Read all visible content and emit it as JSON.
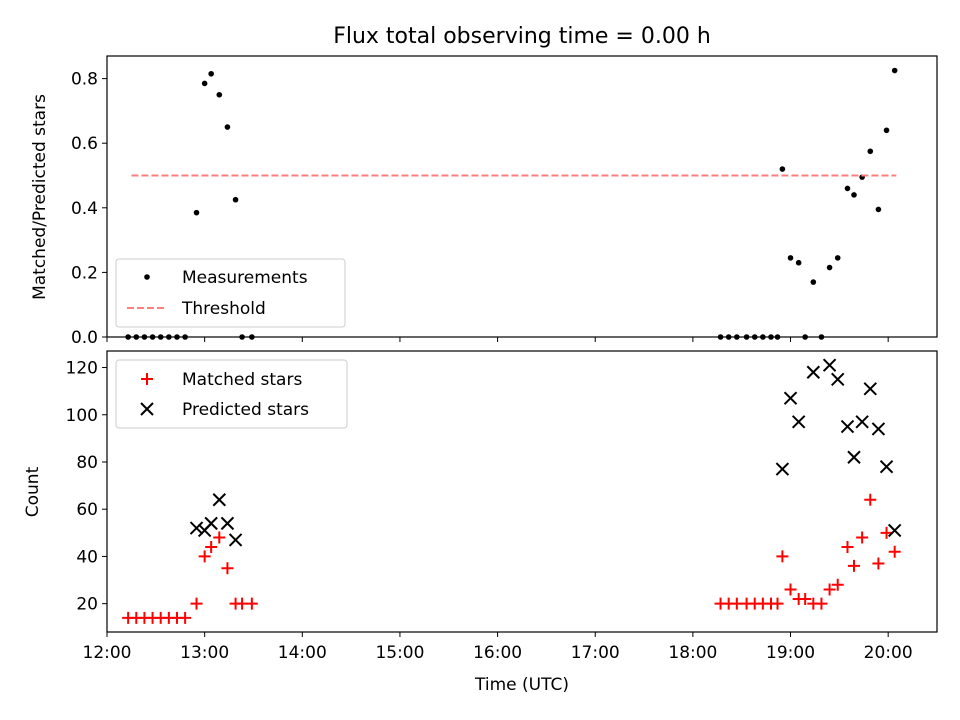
{
  "chart_data": [
    {
      "type": "scatter",
      "title": "Flux total observing time = 0.00 h",
      "xlabel": "",
      "ylabel": "Matched/Predicted stars",
      "xlim": [
        "12:00",
        "20:30"
      ],
      "ylim": [
        0,
        0.87
      ],
      "yticks": [
        "0.0",
        "0.2",
        "0.4",
        "0.6",
        "0.8"
      ],
      "legend_position": "lower-left",
      "series": [
        {
          "name": "Measurements",
          "marker": "dot",
          "color": "#000000",
          "points": [
            [
              "12:13",
              0
            ],
            [
              "12:18",
              0
            ],
            [
              "12:23",
              0
            ],
            [
              "12:28",
              0
            ],
            [
              "12:33",
              0
            ],
            [
              "12:38",
              0
            ],
            [
              "12:43",
              0
            ],
            [
              "12:48",
              0
            ],
            [
              "12:55",
              0.385
            ],
            [
              "13:00",
              0.785
            ],
            [
              "13:04",
              0.815
            ],
            [
              "13:09",
              0.75
            ],
            [
              "13:14",
              0.65
            ],
            [
              "13:19",
              0.425
            ],
            [
              "13:23",
              0
            ],
            [
              "13:29",
              0
            ],
            [
              "18:17",
              0
            ],
            [
              "18:22",
              0
            ],
            [
              "18:27",
              0
            ],
            [
              "18:33",
              0
            ],
            [
              "18:38",
              0
            ],
            [
              "18:43",
              0
            ],
            [
              "18:48",
              0
            ],
            [
              "18:52",
              0
            ],
            [
              "18:55",
              0.52
            ],
            [
              "19:00",
              0.245
            ],
            [
              "19:05",
              0.23
            ],
            [
              "19:09",
              0
            ],
            [
              "19:14",
              0.17
            ],
            [
              "19:19",
              0
            ],
            [
              "19:24",
              0.215
            ],
            [
              "19:29",
              0.245
            ],
            [
              "19:35",
              0.46
            ],
            [
              "19:39",
              0.44
            ],
            [
              "19:44",
              0.495
            ],
            [
              "19:49",
              0.575
            ],
            [
              "19:54",
              0.395
            ],
            [
              "19:59",
              0.64
            ],
            [
              "20:04",
              0.825
            ]
          ]
        },
        {
          "name": "Threshold",
          "style": "dashed",
          "color": "#ff7f7f",
          "points": [
            [
              "12:15",
              0.5
            ],
            [
              "20:05",
              0.5
            ]
          ]
        }
      ]
    },
    {
      "type": "scatter",
      "title": "",
      "xlabel": "Time (UTC)",
      "ylabel": "Count",
      "xlim": [
        "12:00",
        "20:30"
      ],
      "ylim": [
        8,
        127
      ],
      "xticks": [
        "12:00",
        "13:00",
        "14:00",
        "15:00",
        "16:00",
        "17:00",
        "18:00",
        "19:00",
        "20:00"
      ],
      "yticks": [
        "20",
        "40",
        "60",
        "80",
        "100",
        "120"
      ],
      "legend_position": "upper-left",
      "series": [
        {
          "name": "Matched stars",
          "marker": "plus",
          "color": "#ff0000",
          "points": [
            [
              "12:13",
              14
            ],
            [
              "12:18",
              14
            ],
            [
              "12:23",
              14
            ],
            [
              "12:28",
              14
            ],
            [
              "12:33",
              14
            ],
            [
              "12:38",
              14
            ],
            [
              "12:43",
              14
            ],
            [
              "12:48",
              14
            ],
            [
              "12:55",
              20
            ],
            [
              "13:00",
              40
            ],
            [
              "13:04",
              44
            ],
            [
              "13:09",
              48
            ],
            [
              "13:14",
              35
            ],
            [
              "13:19",
              20
            ],
            [
              "13:23",
              20
            ],
            [
              "13:29",
              20
            ],
            [
              "18:17",
              20
            ],
            [
              "18:22",
              20
            ],
            [
              "18:27",
              20
            ],
            [
              "18:33",
              20
            ],
            [
              "18:38",
              20
            ],
            [
              "18:43",
              20
            ],
            [
              "18:48",
              20
            ],
            [
              "18:52",
              20
            ],
            [
              "18:55",
              40
            ],
            [
              "19:00",
              26
            ],
            [
              "19:05",
              22
            ],
            [
              "19:09",
              22
            ],
            [
              "19:14",
              20
            ],
            [
              "19:19",
              20
            ],
            [
              "19:24",
              26
            ],
            [
              "19:29",
              28
            ],
            [
              "19:35",
              44
            ],
            [
              "19:39",
              36
            ],
            [
              "19:44",
              48
            ],
            [
              "19:49",
              64
            ],
            [
              "19:54",
              37
            ],
            [
              "19:59",
              50
            ],
            [
              "20:04",
              42
            ]
          ]
        },
        {
          "name": "Predicted stars",
          "marker": "x",
          "color": "#000000",
          "points": [
            [
              "12:55",
              52
            ],
            [
              "13:00",
              51
            ],
            [
              "13:04",
              54
            ],
            [
              "13:09",
              64
            ],
            [
              "13:14",
              54
            ],
            [
              "13:19",
              47
            ],
            [
              "18:55",
              77
            ],
            [
              "19:00",
              107
            ],
            [
              "19:05",
              97
            ],
            [
              "19:14",
              118
            ],
            [
              "19:24",
              121
            ],
            [
              "19:29",
              115
            ],
            [
              "19:35",
              95
            ],
            [
              "19:39",
              82
            ],
            [
              "19:44",
              97
            ],
            [
              "19:49",
              111
            ],
            [
              "19:54",
              94
            ],
            [
              "19:59",
              78
            ],
            [
              "20:04",
              51
            ]
          ]
        }
      ]
    }
  ]
}
